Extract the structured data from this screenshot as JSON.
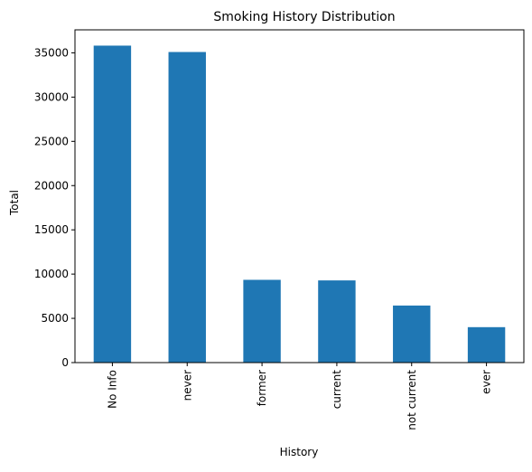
{
  "chart_data": {
    "type": "bar",
    "title": "Smoking History Distribution",
    "xlabel": "History",
    "ylabel": "Total",
    "categories": [
      "No Info",
      "never",
      "former",
      "current",
      "not current",
      "ever"
    ],
    "values": [
      35816,
      35095,
      9352,
      9286,
      6447,
      4004
    ],
    "ylim": [
      0,
      37600
    ],
    "yticks": [
      0,
      5000,
      10000,
      15000,
      20000,
      25000,
      30000,
      35000
    ],
    "grid": false,
    "legend": "none",
    "bar_color": "#1f77b4"
  }
}
